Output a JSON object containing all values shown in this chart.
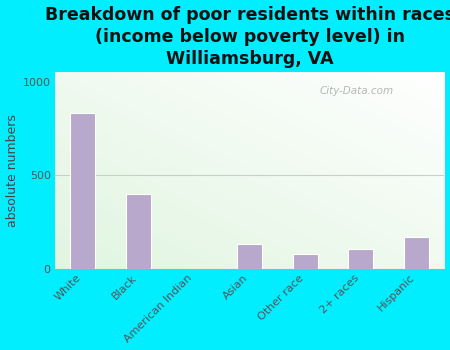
{
  "title": "Breakdown of poor residents within races\n(income below poverty level) in\nWilliamsburg, VA",
  "ylabel": "absolute numbers",
  "categories": [
    "White",
    "Black",
    "American Indian",
    "Asian",
    "Other race",
    "2+ races",
    "Hispanic"
  ],
  "values": [
    830,
    400,
    0,
    130,
    80,
    105,
    170
  ],
  "bar_color": "#b8a8cc",
  "bar_edge_color": "#ffffff",
  "background_outer": "#00eeff",
  "plot_bg_topleft": "#e8f5e2",
  "plot_bg_topright": "#f5faf5",
  "plot_bg_bottom": "#d8efd8",
  "ylim": [
    0,
    1050
  ],
  "yticks": [
    0,
    500,
    1000
  ],
  "title_fontsize": 12.5,
  "ylabel_fontsize": 9,
  "tick_fontsize": 8,
  "watermark": "City-Data.com",
  "hline_y": 500,
  "hline_color": "#cccccc",
  "bar_width": 0.45
}
